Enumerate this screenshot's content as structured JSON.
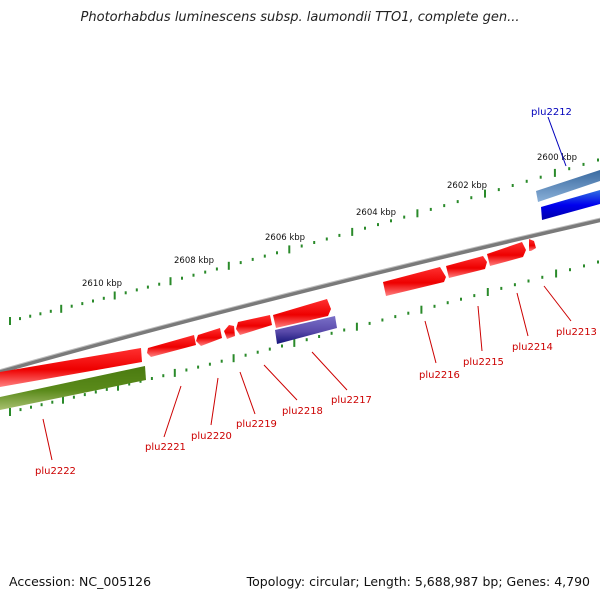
{
  "title": "Photorhabdus luminescens subsp. laumondii TTO1, complete gen...",
  "footer": {
    "accession": "Accession: NC_005126",
    "summary": "Topology: circular; Length: 5,688,987 bp; Genes: 4,790"
  },
  "colors": {
    "backbone": "#7a7a7a",
    "forward_tick": "#2a8a2a",
    "gene_red": "#ee0000",
    "gene_green": "#5a8a1a",
    "gene_blue": "#0000ee",
    "gene_purple": "#5a4aaa",
    "label_red": "#cc0000",
    "label_blue": "#0000bb"
  },
  "ruler_labels": [
    "2600 kbp",
    "2602 kbp",
    "2604 kbp",
    "2606 kbp",
    "2608 kbp",
    "2610 kbp"
  ],
  "gene_labels": [
    {
      "id": "plu2212",
      "color": "blue"
    },
    {
      "id": "plu2213",
      "color": "red"
    },
    {
      "id": "plu2214",
      "color": "red"
    },
    {
      "id": "plu2215",
      "color": "red"
    },
    {
      "id": "plu2216",
      "color": "red"
    },
    {
      "id": "plu2217",
      "color": "red"
    },
    {
      "id": "plu2218",
      "color": "red"
    },
    {
      "id": "plu2219",
      "color": "red"
    },
    {
      "id": "plu2220",
      "color": "red"
    },
    {
      "id": "plu2221",
      "color": "red"
    },
    {
      "id": "plu2222",
      "color": "red"
    }
  ]
}
